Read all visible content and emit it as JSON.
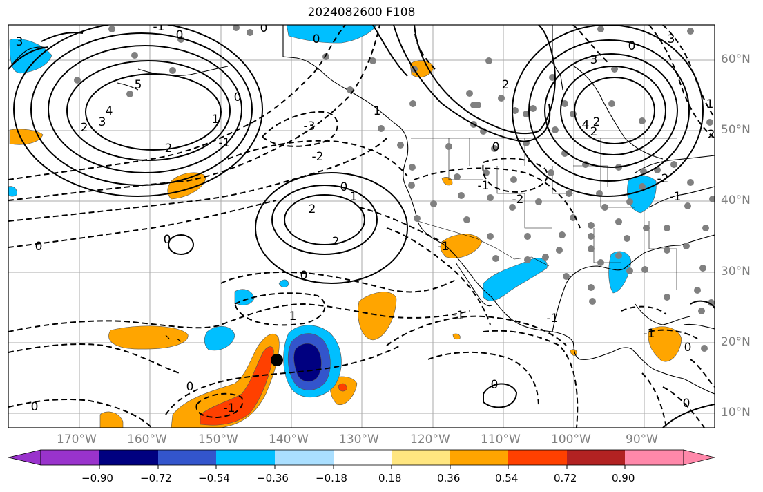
{
  "map": {
    "title": "2024082600 F108",
    "lat_labels": [
      "60°N",
      "50°N",
      "40°N",
      "30°N",
      "20°N",
      "10°N"
    ],
    "lon_labels": [
      "170°W",
      "160°W",
      "150°W",
      "140°W",
      "130°W",
      "120°W",
      "110°W",
      "100°W",
      "90°W"
    ],
    "contour_labels": [
      "0",
      "-1",
      "0",
      "3",
      "5",
      "4",
      "3",
      "2",
      "1",
      "0",
      "-1",
      "0",
      "2",
      "2",
      "1",
      "0",
      "-1",
      "-3",
      "-2",
      "-2",
      "0",
      "1",
      "2",
      "2",
      "0",
      "-1",
      "0",
      "0",
      "-1",
      "1",
      "-1",
      "0",
      "0",
      "-1",
      "0",
      "3",
      "2",
      "2",
      "0",
      "4",
      "3",
      "2",
      "1",
      "-2",
      "-1",
      "0",
      "0",
      "-1"
    ],
    "colorbar": {
      "tick_labels": [
        "−0.90",
        "−0.72",
        "−0.54",
        "−0.36",
        "−0.18",
        "0.18",
        "0.36",
        "0.54",
        "0.72",
        "0.90"
      ],
      "colors": [
        "#9933cc",
        "#000080",
        "#3355cc",
        "#00bfff",
        "#aadfff",
        "#ffffff",
        "#ffe680",
        "#ffa500",
        "#ff4000",
        "#b22222",
        "#ff88aa"
      ]
    }
  }
}
